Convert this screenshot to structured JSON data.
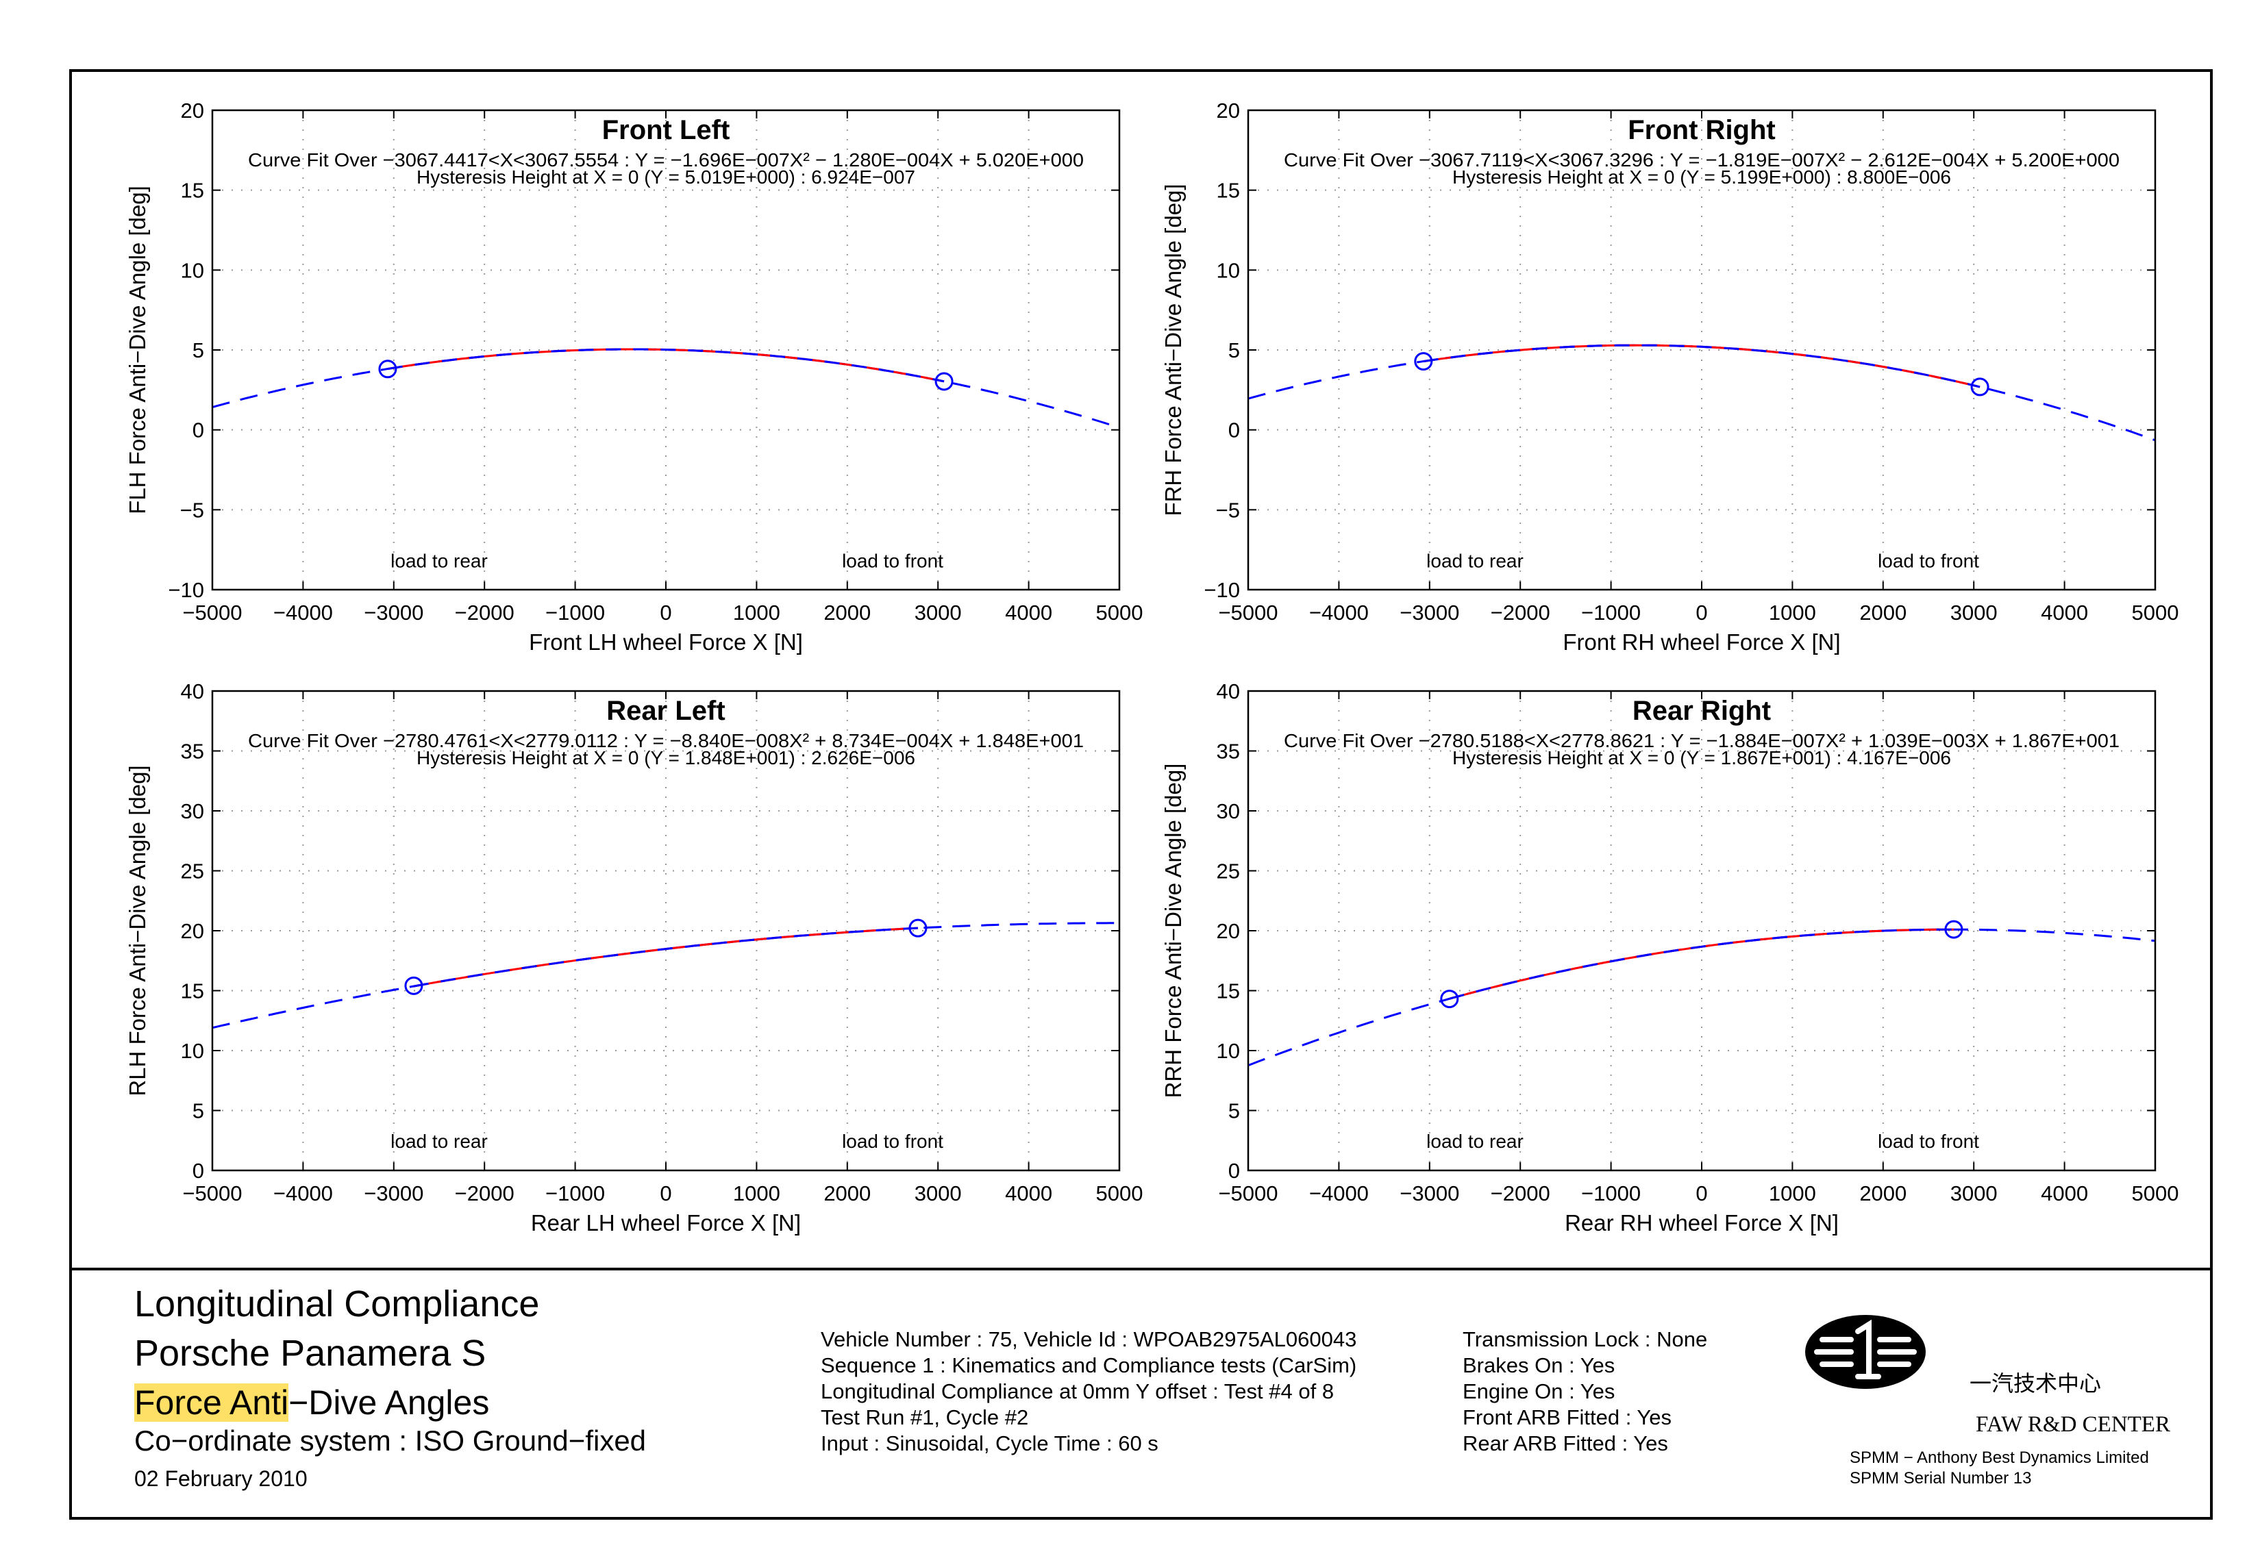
{
  "chart_data": [
    {
      "type": "line",
      "title": "Front Left",
      "fit_line1": "Curve Fit Over −3067.4417<X<3067.5554 : Y = −1.696E−007X² − 1.280E−004X + 5.020E+000",
      "fit_line2": "Hysteresis Height at X = 0 (Y = 5.019E+000) : 6.924E−007",
      "xlabel": "Front LH wheel Force X [N]",
      "ylabel": "FLH Force Anti−Dive Angle [deg]",
      "xlim": [
        -5000,
        5000
      ],
      "ylim": [
        -10,
        20
      ],
      "xticks": [
        -5000,
        -4000,
        -3000,
        -2000,
        -1000,
        0,
        1000,
        2000,
        3000,
        4000,
        5000
      ],
      "yticks": [
        -10,
        -5,
        0,
        5,
        10,
        15,
        20
      ],
      "xtick_labels": [
        "−5000",
        "−4000",
        "−3000",
        "−2000",
        "−1000",
        "0",
        "1000",
        "2000",
        "3000",
        "4000",
        "5000"
      ],
      "ytick_labels": [
        "−10",
        "−5",
        "0",
        "5",
        "10",
        "15",
        "20"
      ],
      "grid": true,
      "annotations": [
        {
          "text": "load to rear",
          "x": -2500,
          "y": -8.6
        },
        {
          "text": "load to front",
          "x": 2500,
          "y": -8.6
        }
      ],
      "fit": {
        "a": -1.696e-07,
        "b": -0.000128,
        "c": 5.02
      },
      "measured_range": [
        -3067.4417,
        3067.5554
      ],
      "markers": [
        {
          "x": -3067,
          "y": 3.81
        },
        {
          "x": 3067,
          "y": 3.03
        }
      ]
    },
    {
      "type": "line",
      "title": "Front Right",
      "fit_line1": "Curve Fit Over −3067.7119<X<3067.3296 : Y = −1.819E−007X² − 2.612E−004X + 5.200E+000",
      "fit_line2": "Hysteresis Height at X = 0 (Y = 5.199E+000) : 8.800E−006",
      "xlabel": "Front RH wheel Force X [N]",
      "ylabel": "FRH Force Anti−Dive Angle [deg]",
      "xlim": [
        -5000,
        5000
      ],
      "ylim": [
        -10,
        20
      ],
      "xticks": [
        -5000,
        -4000,
        -3000,
        -2000,
        -1000,
        0,
        1000,
        2000,
        3000,
        4000,
        5000
      ],
      "yticks": [
        -10,
        -5,
        0,
        5,
        10,
        15,
        20
      ],
      "xtick_labels": [
        "−5000",
        "−4000",
        "−3000",
        "−2000",
        "−1000",
        "0",
        "1000",
        "2000",
        "3000",
        "4000",
        "5000"
      ],
      "ytick_labels": [
        "−10",
        "−5",
        "0",
        "5",
        "10",
        "15",
        "20"
      ],
      "grid": true,
      "annotations": [
        {
          "text": "load to rear",
          "x": -2500,
          "y": -8.6
        },
        {
          "text": "load to front",
          "x": 2500,
          "y": -8.6
        }
      ],
      "fit": {
        "a": -1.819e-07,
        "b": -0.0002612,
        "c": 5.2
      },
      "measured_range": [
        -3067.7119,
        3067.3296
      ],
      "markers": [
        {
          "x": -3068,
          "y": 4.29
        },
        {
          "x": 3067,
          "y": 2.69
        }
      ]
    },
    {
      "type": "line",
      "title": "Rear Left",
      "fit_line1": "Curve Fit Over −2780.4761<X<2779.0112 : Y = −8.840E−008X² + 8.734E−004X + 1.848E+001",
      "fit_line2": "Hysteresis Height at X = 0 (Y = 1.848E+001) : 2.626E−006",
      "xlabel": "Rear LH wheel Force X [N]",
      "ylabel": "RLH Force Anti−Dive Angle [deg]",
      "xlim": [
        -5000,
        5000
      ],
      "ylim": [
        0,
        40
      ],
      "xticks": [
        -5000,
        -4000,
        -3000,
        -2000,
        -1000,
        0,
        1000,
        2000,
        3000,
        4000,
        5000
      ],
      "yticks": [
        0,
        5,
        10,
        15,
        20,
        25,
        30,
        35,
        40
      ],
      "xtick_labels": [
        "−5000",
        "−4000",
        "−3000",
        "−2000",
        "−1000",
        "0",
        "1000",
        "2000",
        "3000",
        "4000",
        "5000"
      ],
      "ytick_labels": [
        "0",
        "5",
        "10",
        "15",
        "20",
        "25",
        "30",
        "35",
        "40"
      ],
      "grid": true,
      "annotations": [
        {
          "text": "load to rear",
          "x": -2500,
          "y": 1.9
        },
        {
          "text": "load to front",
          "x": 2500,
          "y": 1.9
        }
      ],
      "fit": {
        "a": -8.84e-08,
        "b": 0.0008734,
        "c": 18.48
      },
      "measured_range": [
        -2780.4761,
        2779.0112
      ],
      "markers": [
        {
          "x": -2780,
          "y": 15.41
        },
        {
          "x": 2779,
          "y": 20.22
        }
      ]
    },
    {
      "type": "line",
      "title": "Rear Right",
      "fit_line1": "Curve Fit Over −2780.5188<X<2778.8621 : Y = −1.884E−007X² + 1.039E−003X + 1.867E+001",
      "fit_line2": "Hysteresis Height at X = 0 (Y = 1.867E+001) : 4.167E−006",
      "xlabel": "Rear RH wheel Force X [N]",
      "ylabel": "RRH Force Anti−Dive Angle [deg]",
      "xlim": [
        -5000,
        5000
      ],
      "ylim": [
        0,
        40
      ],
      "xticks": [
        -5000,
        -4000,
        -3000,
        -2000,
        -1000,
        0,
        1000,
        2000,
        3000,
        4000,
        5000
      ],
      "yticks": [
        0,
        5,
        10,
        15,
        20,
        25,
        30,
        35,
        40
      ],
      "xtick_labels": [
        "−5000",
        "−4000",
        "−3000",
        "−2000",
        "−1000",
        "0",
        "1000",
        "2000",
        "3000",
        "4000",
        "5000"
      ],
      "ytick_labels": [
        "0",
        "5",
        "10",
        "15",
        "20",
        "25",
        "30",
        "35",
        "40"
      ],
      "grid": true,
      "annotations": [
        {
          "text": "load to rear",
          "x": -2500,
          "y": 1.9
        },
        {
          "text": "load to front",
          "x": 2500,
          "y": 1.9
        }
      ],
      "fit": {
        "a": -1.884e-07,
        "b": 0.001039,
        "c": 18.67
      },
      "measured_range": [
        -2780.5188,
        2778.8621
      ],
      "markers": [
        {
          "x": -2781,
          "y": 14.31
        },
        {
          "x": 2779,
          "y": 20.11
        }
      ]
    }
  ],
  "colors": {
    "measured": "#ff0000",
    "fit": "#0000ff",
    "marker": "#0000ff",
    "grid": "#999999",
    "highlight": "#ffe066"
  },
  "report": {
    "title1": "Longitudinal Compliance",
    "title2": "Porsche Panamera S",
    "subtitle_highlight": "Force Anti",
    "subtitle_rest": "−Dive Angles",
    "coord_system": "Co−ordinate system : ISO Ground−fixed",
    "date": "02 February 2010"
  },
  "vehicle_info": [
    "Vehicle Number : 75, Vehicle Id : WPOAB2975AL060043",
    "Sequence 1 : Kinematics and Compliance tests (CarSim)",
    "Longitudinal Compliance at 0mm Y offset : Test #4 of 8",
    "Test Run #1, Cycle #2",
    "Input : Sinusoidal, Cycle Time : 60 s"
  ],
  "test_conditions": [
    "Transmission Lock : None",
    "Brakes On : Yes",
    "Engine On : Yes",
    "Front ARB Fitted : Yes",
    "Rear ARB Fitted : Yes"
  ],
  "logo": {
    "chinese_text": "一汽技术中心",
    "english_text": "FAW R&D CENTER"
  },
  "credits": [
    "SPMM − Anthony Best Dynamics Limited",
    "SPMM Serial Number 13"
  ]
}
